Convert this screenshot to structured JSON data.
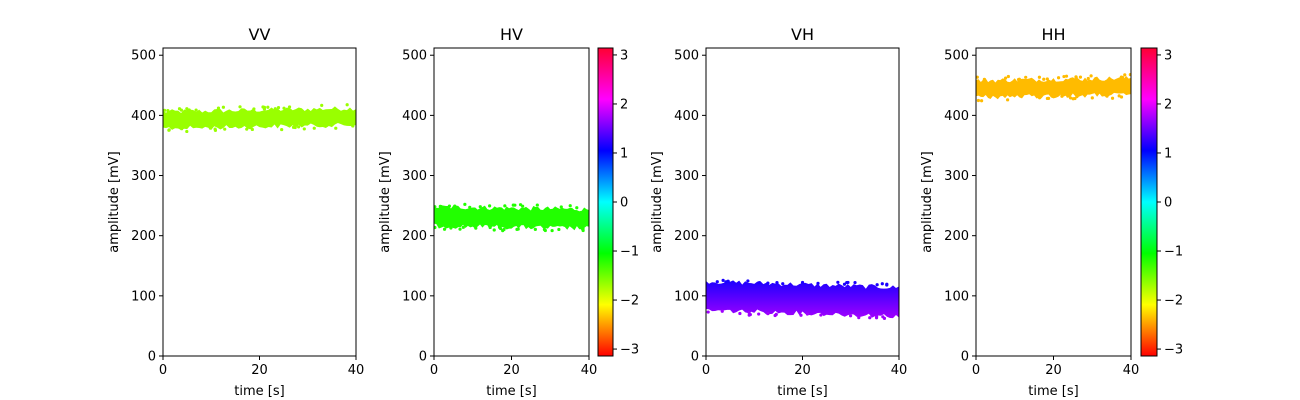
{
  "chart_data": [
    {
      "type": "scatter",
      "title": "VV",
      "xlabel": "time [s]",
      "ylabel": "amplitude [mV]",
      "xlim": [
        0,
        40
      ],
      "ylim": [
        0,
        512
      ],
      "xticks": [
        0,
        20,
        40
      ],
      "yticks": [
        0,
        100,
        200,
        300,
        400,
        500
      ],
      "band": {
        "x": [
          0,
          40
        ],
        "center_start": 392,
        "center_end": 398,
        "halfwidth": 14,
        "color": "#99ff00"
      },
      "colorbar": false
    },
    {
      "type": "scatter",
      "title": "HV",
      "xlabel": "time [s]",
      "ylabel": "amplitude [mV]",
      "xlim": [
        0,
        40
      ],
      "ylim": [
        0,
        512
      ],
      "xticks": [
        0,
        20,
        40
      ],
      "yticks": [
        0,
        100,
        200,
        300,
        400,
        500
      ],
      "band": {
        "x": [
          0,
          40
        ],
        "center_start": 232,
        "center_end": 228,
        "halfwidth": 16,
        "color": "#22ff00"
      },
      "colorbar": true,
      "colorbar_ticks": [
        3,
        2,
        1,
        0,
        -1,
        -2,
        -3
      ],
      "colorbar_tick_labels": [
        "3",
        "2",
        "1",
        "0",
        "−1",
        "−2",
        "−3"
      ],
      "colorbar_range": [
        -3.14159,
        3.14159
      ]
    },
    {
      "type": "scatter",
      "title": "VH",
      "xlabel": "time [s]",
      "ylabel": "amplitude [mV]",
      "xlim": [
        0,
        40
      ],
      "ylim": [
        0,
        512
      ],
      "xticks": [
        0,
        20,
        40
      ],
      "yticks": [
        0,
        100,
        200,
        300,
        400,
        500
      ],
      "band": {
        "x": [
          0,
          40
        ],
        "center_start": 100,
        "center_end": 90,
        "halfwidth": 24,
        "color_top": "#1a00ff",
        "color_bottom": "#a000ff"
      },
      "colorbar": false
    },
    {
      "type": "scatter",
      "title": "HH",
      "xlabel": "time [s]",
      "ylabel": "amplitude [mV]",
      "xlim": [
        0,
        40
      ],
      "ylim": [
        0,
        512
      ],
      "xticks": [
        0,
        20,
        40
      ],
      "yticks": [
        0,
        100,
        200,
        300,
        400,
        500
      ],
      "band": {
        "x": [
          0,
          40
        ],
        "center_start": 444,
        "center_end": 448,
        "halfwidth": 14,
        "color": "#ffbb00"
      },
      "colorbar": true,
      "colorbar_ticks": [
        3,
        2,
        1,
        0,
        -1,
        -2,
        -3
      ],
      "colorbar_tick_labels": [
        "3",
        "2",
        "1",
        "0",
        "−1",
        "−2",
        "−3"
      ],
      "colorbar_range": [
        -3.14159,
        3.14159
      ]
    }
  ]
}
